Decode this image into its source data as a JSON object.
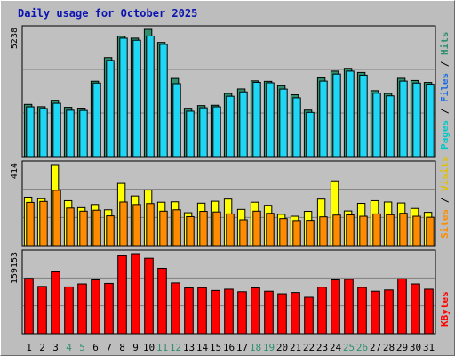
{
  "title": "Daily usage for October 2025",
  "chart_data": [
    {
      "type": "bar",
      "panel": "pages-files-hits",
      "categories": [
        "1",
        "2",
        "3",
        "4",
        "5",
        "6",
        "7",
        "8",
        "9",
        "10",
        "11",
        "12",
        "13",
        "14",
        "15",
        "16",
        "17",
        "18",
        "19",
        "20",
        "21",
        "22",
        "23",
        "24",
        "25",
        "26",
        "27",
        "28",
        "29",
        "30",
        "31"
      ],
      "weekend_days": [
        "4",
        "5",
        "11",
        "12",
        "18",
        "19",
        "25",
        "26"
      ],
      "max_label": "5238",
      "ylim": [
        0,
        5238
      ],
      "series": [
        {
          "name": "Hits",
          "color": "#2f8f6f",
          "values": [
            2150,
            2055,
            2320,
            2030,
            1995,
            3105,
            4075,
            4955,
            4875,
            5238,
            4700,
            3220,
            1990,
            2100,
            2115,
            2600,
            2785,
            3120,
            3100,
            2920,
            2545,
            1915,
            3240,
            3520,
            3635,
            3465,
            2715,
            2600,
            3225,
            3135,
            3055
          ]
        },
        {
          "name": "Files",
          "color": "#1fd7f5",
          "values": [
            2050,
            1980,
            2195,
            1910,
            1900,
            3030,
            3960,
            4875,
            4790,
            4965,
            4620,
            3005,
            1870,
            2010,
            2050,
            2485,
            2665,
            3060,
            3040,
            2780,
            2420,
            1820,
            3110,
            3400,
            3520,
            3355,
            2610,
            2500,
            3110,
            3030,
            2980
          ]
        }
      ]
    },
    {
      "type": "bar",
      "panel": "visits-sites",
      "categories": [
        "1",
        "2",
        "3",
        "4",
        "5",
        "6",
        "7",
        "8",
        "9",
        "10",
        "11",
        "12",
        "13",
        "14",
        "15",
        "16",
        "17",
        "18",
        "19",
        "20",
        "21",
        "22",
        "23",
        "24",
        "25",
        "26",
        "27",
        "28",
        "29",
        "30",
        "31"
      ],
      "max_label": "414",
      "ylim": [
        0,
        414
      ],
      "series": [
        {
          "name": "Visits",
          "color": "#ffff00",
          "values": [
            248,
            240,
            414,
            230,
            194,
            210,
            183,
            318,
            254,
            284,
            222,
            224,
            168,
            217,
            227,
            238,
            185,
            222,
            206,
            160,
            150,
            175,
            238,
            331,
            177,
            216,
            230,
            223,
            218,
            190,
            170
          ]
        },
        {
          "name": "Sites",
          "color": "#ff8c00",
          "values": [
            221,
            226,
            283,
            192,
            176,
            181,
            152,
            223,
            210,
            215,
            176,
            183,
            148,
            175,
            172,
            162,
            132,
            176,
            165,
            138,
            128,
            129,
            147,
            156,
            157,
            150,
            162,
            158,
            165,
            150,
            145
          ]
        }
      ]
    },
    {
      "type": "bar",
      "panel": "kbytes",
      "categories": [
        "1",
        "2",
        "3",
        "4",
        "5",
        "6",
        "7",
        "8",
        "9",
        "10",
        "11",
        "12",
        "13",
        "14",
        "15",
        "16",
        "17",
        "18",
        "19",
        "20",
        "21",
        "22",
        "23",
        "24",
        "25",
        "26",
        "27",
        "28",
        "29",
        "30",
        "31"
      ],
      "max_label": "159153",
      "ylim": [
        0,
        159153
      ],
      "series": [
        {
          "name": "KBytes",
          "color": "#ff0000",
          "values": [
            110000,
            94000,
            123000,
            93000,
            99000,
            107000,
            100000,
            155000,
            159153,
            150000,
            130000,
            101000,
            91000,
            91500,
            86000,
            88500,
            83500,
            91000,
            84500,
            79500,
            82000,
            72500,
            92500,
            107000,
            108000,
            92000,
            84500,
            87000,
            109000,
            99000,
            88500
          ]
        }
      ]
    }
  ]
}
